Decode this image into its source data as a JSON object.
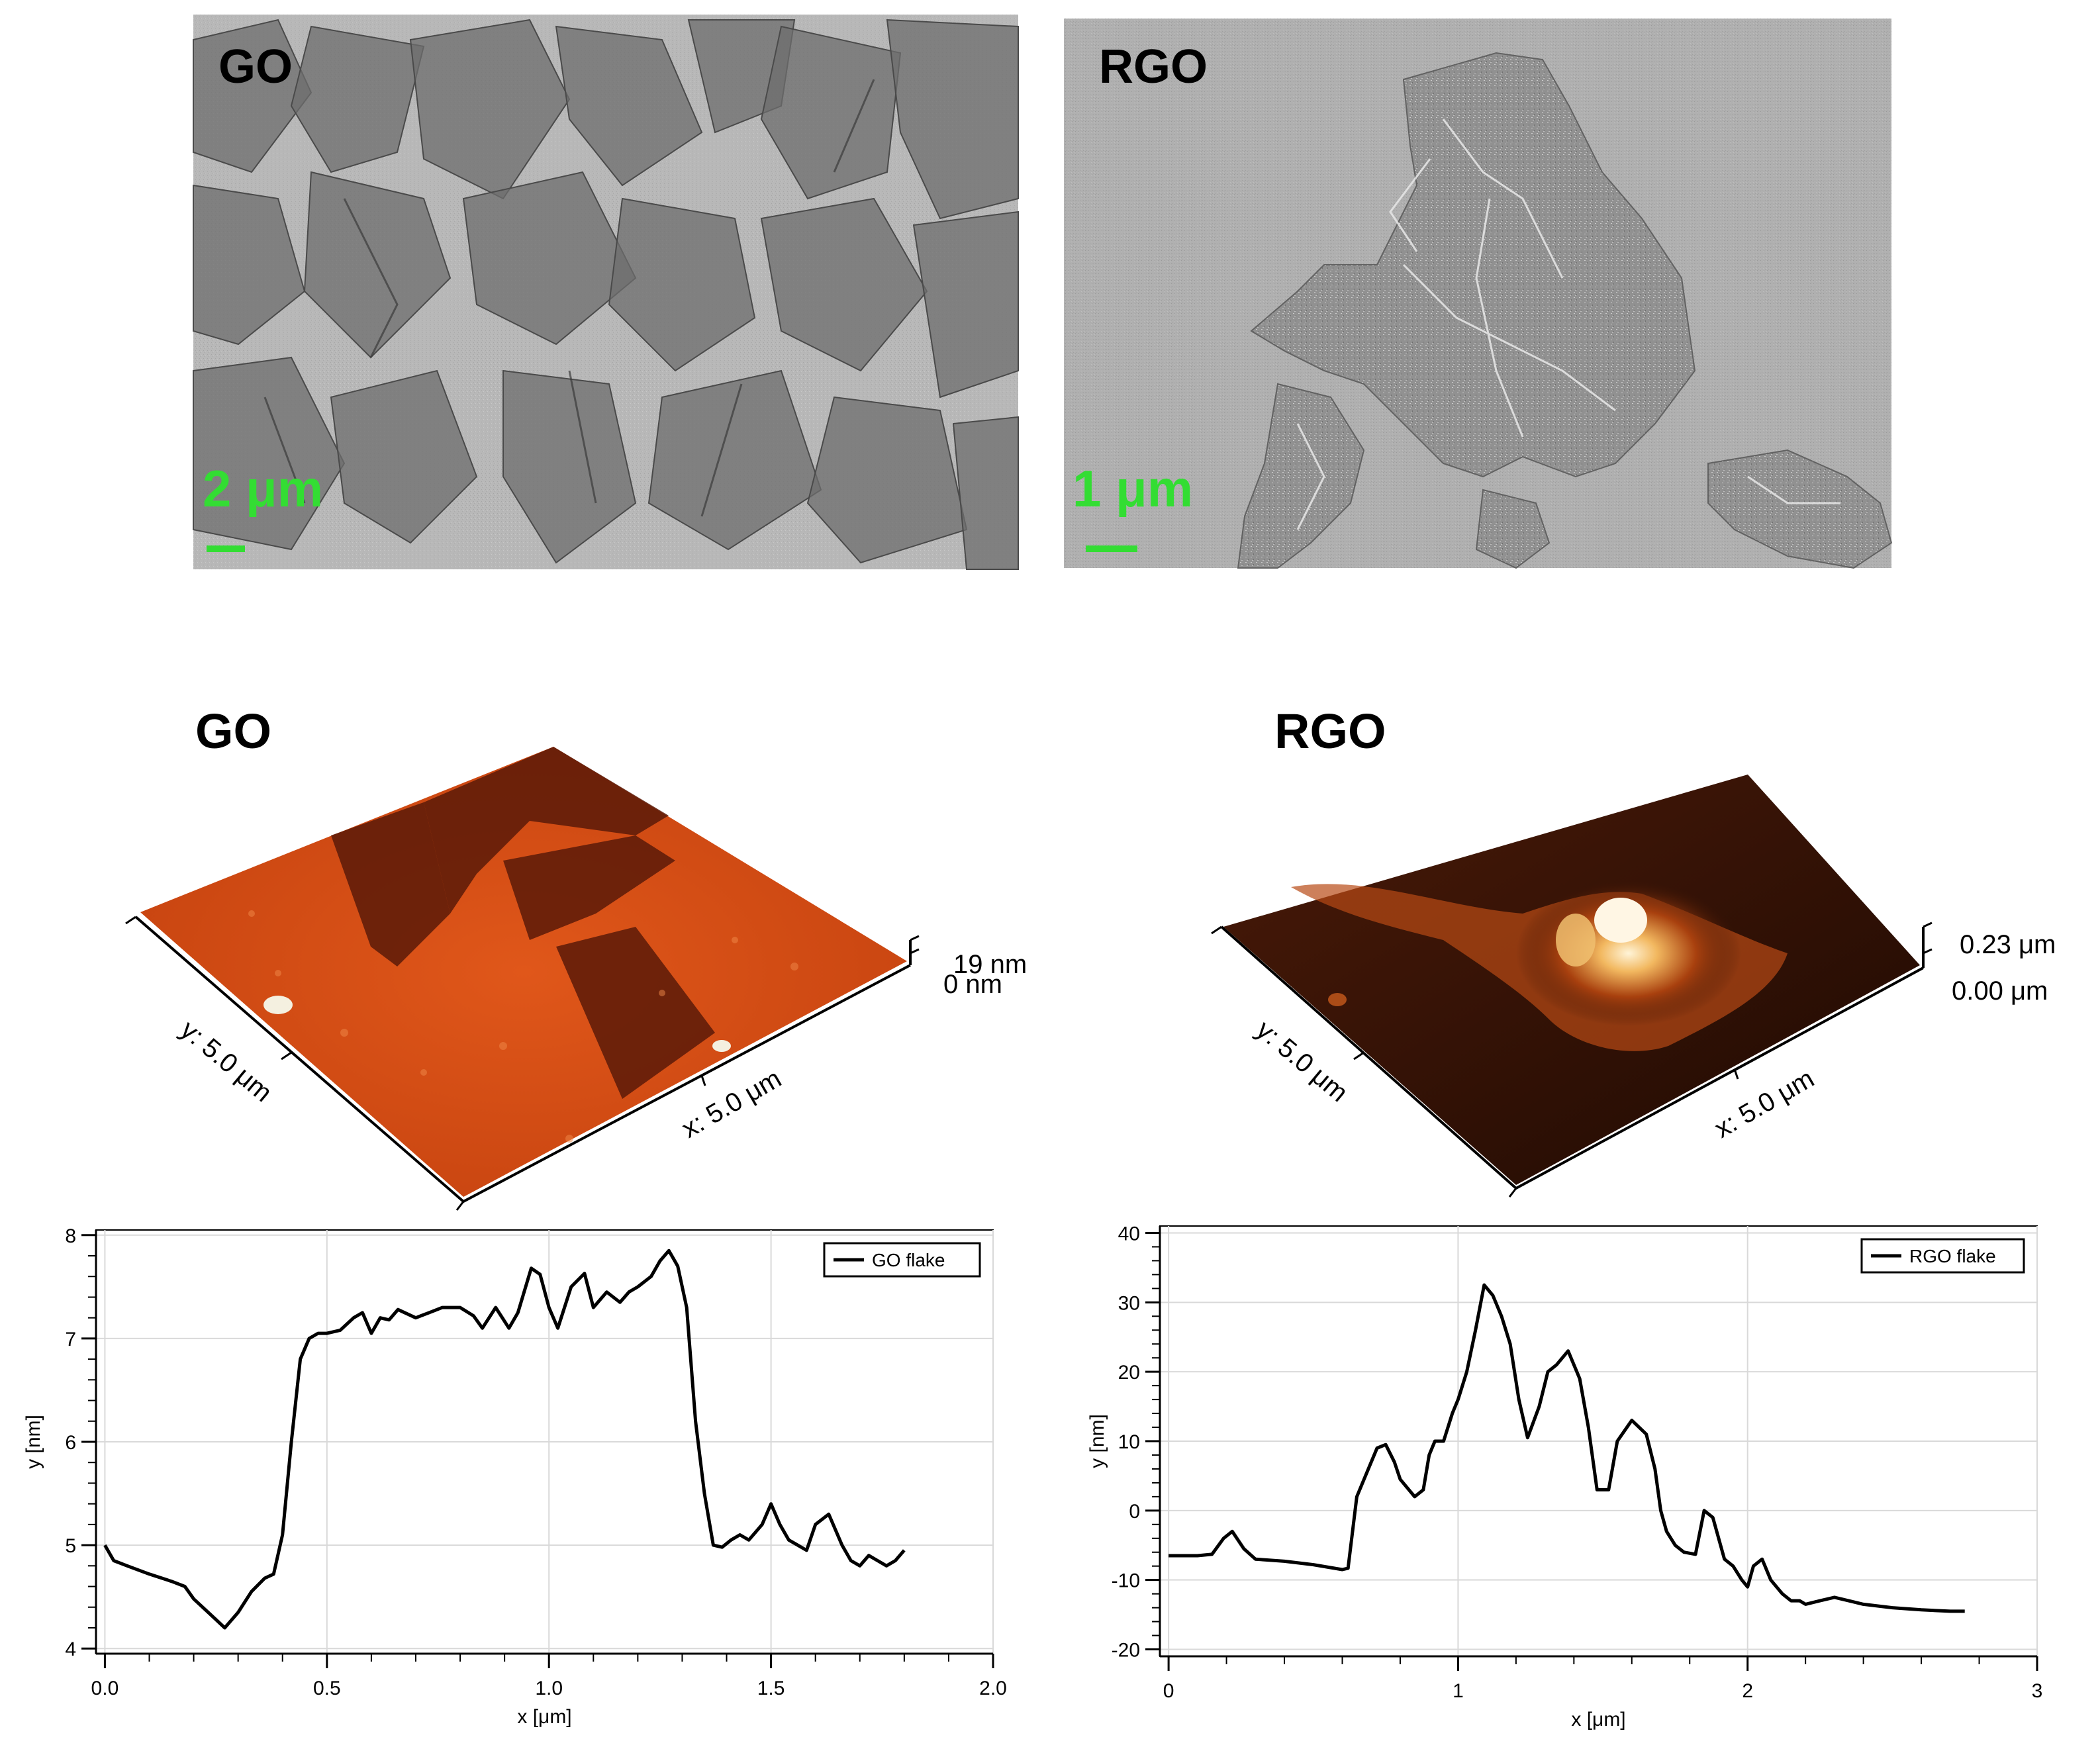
{
  "colors": {
    "scalebar": "#33dd33",
    "afm_go_base": "#d24a14",
    "afm_go_dark": "#5a1a08",
    "afm_rgo_base": "#3a1406",
    "afm_rgo_glow": "#ffdca0",
    "line": "#000000",
    "grid": "#d9d9d9"
  },
  "sem": {
    "go": {
      "label": "GO",
      "scale": "2 μm"
    },
    "rgo": {
      "label": "RGO",
      "scale": "1 μm"
    }
  },
  "afm": {
    "go": {
      "title": "GO",
      "y_axis": "y: 5.0 μm",
      "x_axis": "x: 5.0 μm",
      "z_max": "19 nm",
      "z_min": "0 nm"
    },
    "rgo": {
      "title": "RGO",
      "y_axis": "y: 5.0 μm",
      "x_axis": "x: 5.0 μm",
      "z_max": "0.23 μm",
      "z_min": "0.00 μm"
    }
  },
  "chart_data": [
    {
      "type": "line",
      "xlabel": "x [μm]",
      "ylabel": "y [nm]",
      "xlim": [
        -0.02,
        2.0
      ],
      "ylim": [
        3.95,
        8.05
      ],
      "x_ticks": [
        0.0,
        0.5,
        1.0,
        1.5,
        2.0
      ],
      "x_tick_labels": [
        "0.0",
        "0.5",
        "1.0",
        "1.5",
        "2.0"
      ],
      "y_ticks": [
        4,
        5,
        6,
        7,
        8
      ],
      "y_tick_labels": [
        "4",
        "5",
        "6",
        "7",
        "8"
      ],
      "legend": "top-right",
      "series": [
        {
          "name": "GO flake",
          "x": [
            0.0,
            0.02,
            0.05,
            0.1,
            0.15,
            0.18,
            0.2,
            0.24,
            0.27,
            0.3,
            0.33,
            0.36,
            0.38,
            0.4,
            0.42,
            0.44,
            0.46,
            0.48,
            0.5,
            0.53,
            0.56,
            0.58,
            0.6,
            0.62,
            0.64,
            0.66,
            0.7,
            0.73,
            0.76,
            0.8,
            0.83,
            0.85,
            0.88,
            0.91,
            0.93,
            0.96,
            0.98,
            1.0,
            1.02,
            1.05,
            1.08,
            1.1,
            1.13,
            1.16,
            1.18,
            1.2,
            1.23,
            1.25,
            1.27,
            1.29,
            1.31,
            1.33,
            1.35,
            1.37,
            1.39,
            1.41,
            1.43,
            1.45,
            1.48,
            1.5,
            1.52,
            1.54,
            1.56,
            1.58,
            1.6,
            1.63,
            1.66,
            1.68,
            1.7,
            1.72,
            1.74,
            1.76,
            1.78,
            1.8
          ],
          "values": [
            5.0,
            4.85,
            4.8,
            4.72,
            4.65,
            4.6,
            4.48,
            4.32,
            4.2,
            4.35,
            4.55,
            4.68,
            4.72,
            5.1,
            6.0,
            6.8,
            7.0,
            7.05,
            7.05,
            7.08,
            7.2,
            7.25,
            7.05,
            7.2,
            7.18,
            7.28,
            7.2,
            7.25,
            7.3,
            7.3,
            7.22,
            7.1,
            7.3,
            7.1,
            7.25,
            7.68,
            7.62,
            7.3,
            7.1,
            7.5,
            7.63,
            7.3,
            7.45,
            7.35,
            7.45,
            7.5,
            7.6,
            7.75,
            7.85,
            7.7,
            7.3,
            6.2,
            5.5,
            5.0,
            4.98,
            5.05,
            5.1,
            5.05,
            5.2,
            5.4,
            5.2,
            5.05,
            5.0,
            4.95,
            5.2,
            5.3,
            5.0,
            4.85,
            4.8,
            4.9,
            4.85,
            4.8,
            4.85,
            4.95
          ]
        }
      ]
    },
    {
      "type": "line",
      "xlabel": "x [μm]",
      "ylabel": "y [nm]",
      "xlim": [
        -0.03,
        3.0
      ],
      "ylim": [
        -21,
        41
      ],
      "x_ticks": [
        0,
        1,
        2,
        3
      ],
      "x_tick_labels": [
        "0",
        "1",
        "2",
        "3"
      ],
      "y_ticks": [
        -20,
        -10,
        0,
        10,
        20,
        30,
        40
      ],
      "y_tick_labels": [
        "-20",
        "-10",
        "0",
        "10",
        "20",
        "30",
        "40"
      ],
      "legend": "top-right",
      "series": [
        {
          "name": "RGO flake",
          "x": [
            0.0,
            0.1,
            0.15,
            0.19,
            0.22,
            0.26,
            0.3,
            0.4,
            0.5,
            0.6,
            0.62,
            0.65,
            0.68,
            0.72,
            0.75,
            0.78,
            0.8,
            0.85,
            0.88,
            0.9,
            0.92,
            0.95,
            0.98,
            1.0,
            1.03,
            1.06,
            1.09,
            1.12,
            1.15,
            1.18,
            1.21,
            1.24,
            1.28,
            1.31,
            1.34,
            1.38,
            1.42,
            1.45,
            1.48,
            1.52,
            1.55,
            1.6,
            1.65,
            1.68,
            1.7,
            1.72,
            1.75,
            1.78,
            1.82,
            1.85,
            1.88,
            1.92,
            1.95,
            1.98,
            2.0,
            2.02,
            2.05,
            2.08,
            2.12,
            2.15,
            2.18,
            2.2,
            2.25,
            2.3,
            2.4,
            2.5,
            2.6,
            2.7,
            2.75
          ],
          "values": [
            -6.5,
            -6.5,
            -6.3,
            -4.0,
            -3.0,
            -5.5,
            -7.0,
            -7.3,
            -7.8,
            -8.5,
            -8.3,
            2.0,
            5.0,
            9.0,
            9.5,
            7.0,
            4.5,
            2.0,
            3.0,
            8.0,
            10.0,
            10.0,
            14.0,
            16.0,
            20.0,
            26.0,
            32.5,
            31.0,
            28.0,
            24.0,
            16.0,
            10.5,
            15.0,
            20.0,
            21.0,
            23.0,
            19.0,
            12.0,
            3.0,
            3.0,
            10.0,
            13.0,
            11.0,
            6.0,
            0.0,
            -3.0,
            -5.0,
            -6.0,
            -6.3,
            0.0,
            -1.0,
            -7.0,
            -8.0,
            -10.0,
            -11.0,
            -8.0,
            -7.0,
            -10.0,
            -12.0,
            -13.0,
            -13.0,
            -13.5,
            -13.0,
            -12.5,
            -13.5,
            -14.0,
            -14.3,
            -14.5,
            -14.5
          ]
        }
      ]
    }
  ]
}
